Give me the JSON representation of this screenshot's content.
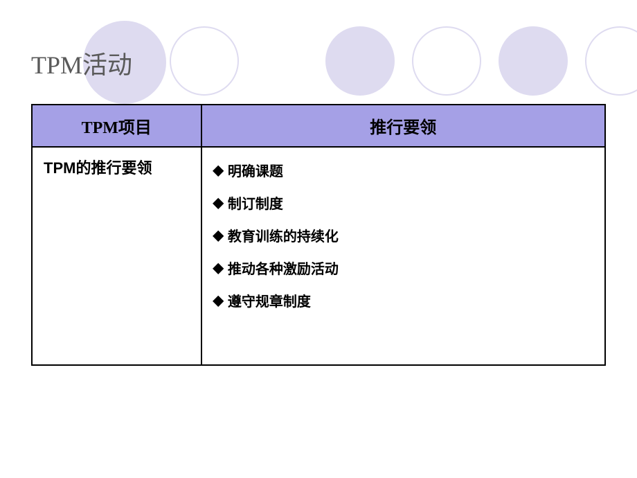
{
  "slide": {
    "title": "TPM活动",
    "decorative_circles": {
      "fill_color": "#dedbf0",
      "stroke_color": "#dedbf0"
    },
    "table": {
      "headers": {
        "col1": "TPM项目",
        "col2": "推行要领"
      },
      "header_bg_color": "#a5a0e6",
      "border_color": "#000000",
      "row": {
        "left_cell": "TPM的推行要领",
        "bullets": [
          "明确课题",
          "制订制度",
          "教育训练的持续化",
          "推动各种激励活动",
          "遵守规章制度"
        ],
        "bullet_symbol": "◆"
      }
    }
  }
}
